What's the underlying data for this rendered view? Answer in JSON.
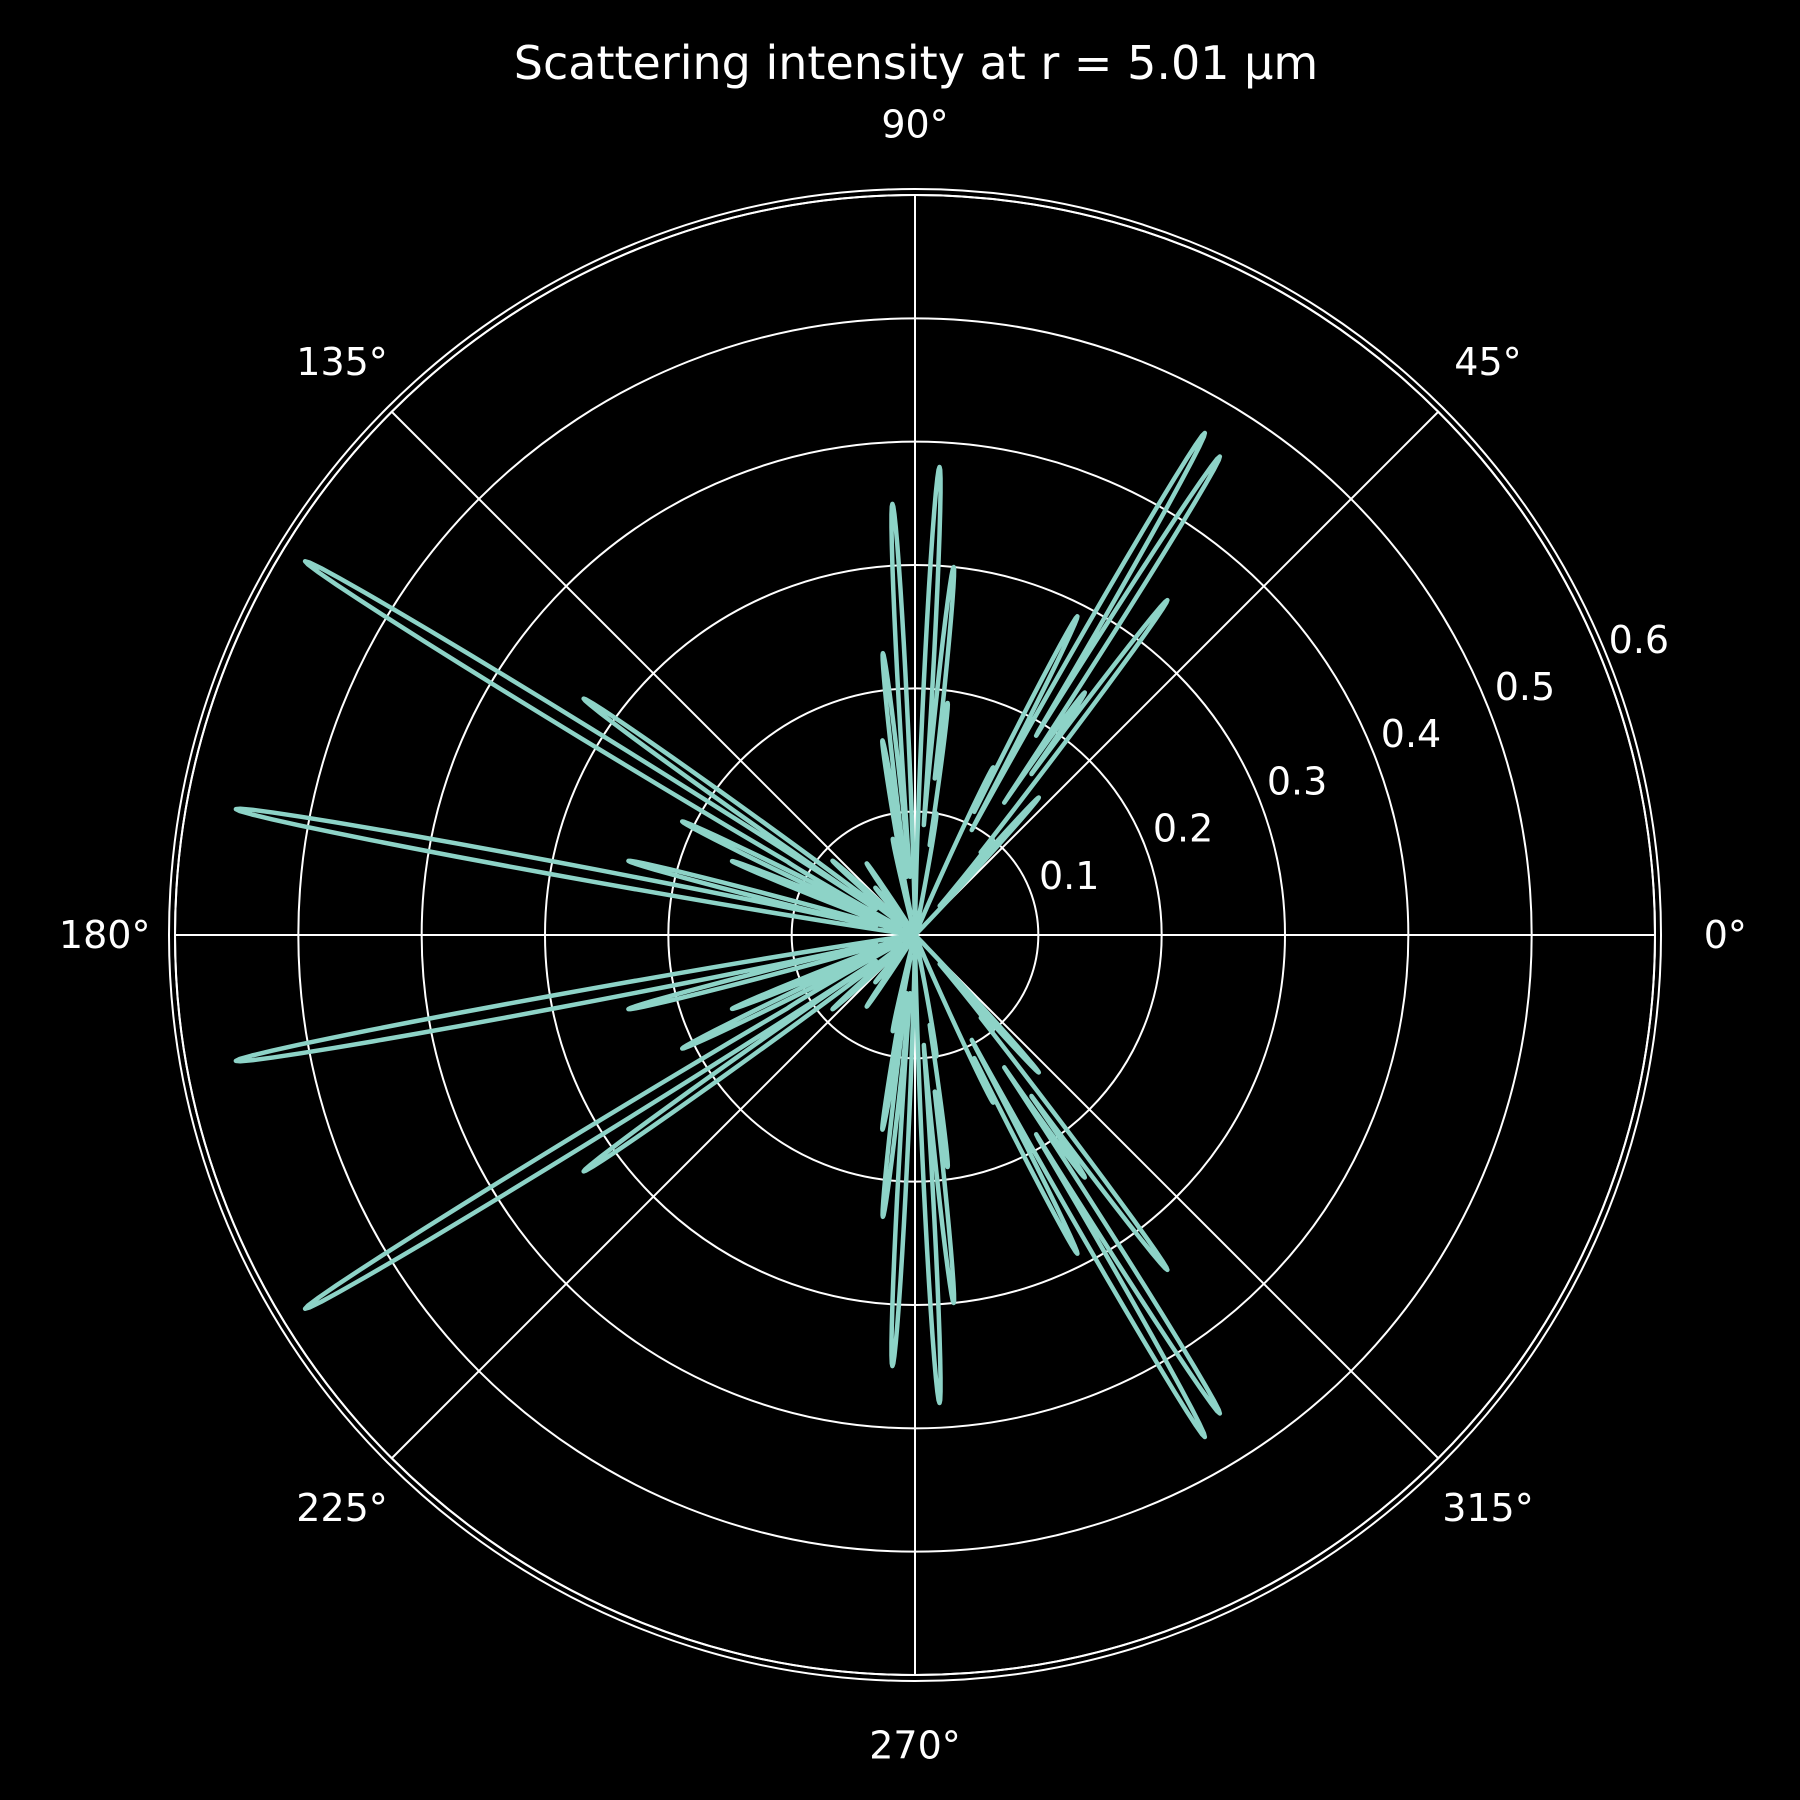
{
  "colors": {
    "background": "#000000",
    "grid": "#ffffff",
    "text": "#ffffff",
    "series": "#8dd3c7"
  },
  "chart_data": {
    "type": "line",
    "projection": "polar",
    "title": "Scattering intensity at r = 5.01 µm",
    "angle_unit": "degrees",
    "angle_ticks": [
      0,
      45,
      90,
      135,
      180,
      225,
      270,
      315
    ],
    "angle_tick_labels": [
      "0°",
      "45°",
      "90°",
      "135°",
      "180°",
      "225°",
      "270°",
      "315°"
    ],
    "r_ticks": [
      0.1,
      0.2,
      0.3,
      0.4,
      0.5,
      0.6
    ],
    "r_tick_labels": [
      "0.1",
      "0.2",
      "0.3",
      "0.4",
      "0.5",
      "0.6"
    ],
    "rlim": [
      0,
      0.6
    ],
    "grid": true,
    "series": [
      {
        "lobes": [
          {
            "theta": 87.0,
            "r": 0.38
          },
          {
            "theta": 93.0,
            "r": 0.35
          },
          {
            "theta": 84.0,
            "r": 0.3
          },
          {
            "theta": 96.5,
            "r": 0.23
          },
          {
            "theta": 82.0,
            "r": 0.19
          },
          {
            "theta": 99.5,
            "r": 0.16
          },
          {
            "theta": 80.0,
            "r": 0.1
          },
          {
            "theta": 103.0,
            "r": 0.08
          },
          {
            "theta": 60.0,
            "r": 0.47
          },
          {
            "theta": 57.5,
            "r": 0.46
          },
          {
            "theta": 63.0,
            "r": 0.29
          },
          {
            "theta": 53.0,
            "r": 0.34
          },
          {
            "theta": 55.0,
            "r": 0.24
          },
          {
            "theta": 65.0,
            "r": 0.15
          },
          {
            "theta": 48.0,
            "r": 0.15
          },
          {
            "theta": 51.0,
            "r": 0.1
          },
          {
            "theta": 148.5,
            "r": 0.58
          },
          {
            "theta": 169.5,
            "r": 0.56
          },
          {
            "theta": 144.5,
            "r": 0.33
          },
          {
            "theta": 165.5,
            "r": 0.24
          },
          {
            "theta": 154.0,
            "r": 0.21
          },
          {
            "theta": 158.0,
            "r": 0.16
          },
          {
            "theta": 150.0,
            "r": 0.12
          },
          {
            "theta": 138.0,
            "r": 0.09
          },
          {
            "theta": 124.0,
            "r": 0.07
          },
          {
            "theta": 130.0,
            "r": 0.05
          }
        ]
      }
    ],
    "symmetry": "mirror about 0° and about 90°"
  }
}
